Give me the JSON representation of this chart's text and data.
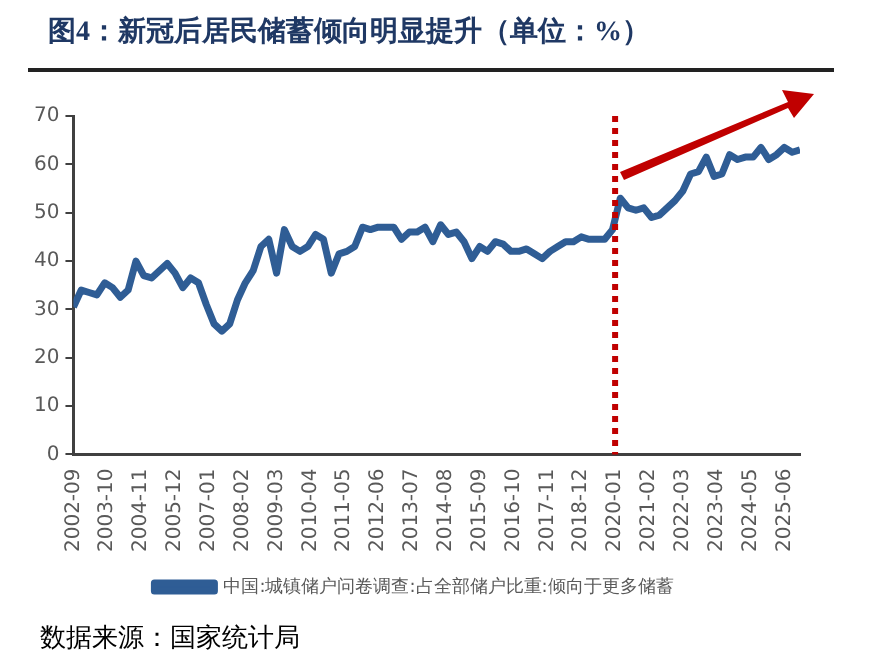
{
  "chart_data": {
    "type": "line",
    "title": "图4：新冠后居民储蓄倾向明显提升（单位：%）",
    "annotations": [
      "数据来源：国家统计局"
    ],
    "x": [
      "2002-09",
      "2002-12",
      "2003-03",
      "2003-06",
      "2003-09",
      "2003-12",
      "2004-03",
      "2004-06",
      "2004-09",
      "2004-12",
      "2005-03",
      "2005-06",
      "2005-09",
      "2005-12",
      "2006-03",
      "2006-06",
      "2006-09",
      "2006-12",
      "2007-03",
      "2007-06",
      "2007-09",
      "2007-12",
      "2008-03",
      "2008-06",
      "2008-09",
      "2008-12",
      "2009-03",
      "2009-06",
      "2009-09",
      "2009-12",
      "2010-03",
      "2010-06",
      "2010-09",
      "2010-12",
      "2011-03",
      "2011-06",
      "2011-09",
      "2011-12",
      "2012-03",
      "2012-06",
      "2012-09",
      "2012-12",
      "2013-03",
      "2013-06",
      "2013-09",
      "2013-12",
      "2014-03",
      "2014-06",
      "2014-09",
      "2014-12",
      "2015-03",
      "2015-06",
      "2015-09",
      "2015-12",
      "2016-03",
      "2016-06",
      "2016-09",
      "2016-12",
      "2017-03",
      "2017-06",
      "2017-09",
      "2017-12",
      "2018-03",
      "2018-06",
      "2018-09",
      "2018-12",
      "2019-03",
      "2019-06",
      "2019-09",
      "2019-12",
      "2020-03",
      "2020-06",
      "2020-09",
      "2020-12",
      "2021-03",
      "2021-06",
      "2021-09",
      "2021-12",
      "2022-03",
      "2022-06",
      "2022-09",
      "2022-12",
      "2023-03",
      "2023-06",
      "2023-09",
      "2023-12",
      "2024-03",
      "2024-06",
      "2024-09",
      "2024-12",
      "2025-03",
      "2025-06",
      "2025-09",
      "2025-12"
    ],
    "series": [
      {
        "name": "中国:城镇储户问卷调查:占全部储户比重:倾向于更多储蓄",
        "color": "#2f5d95",
        "values": [
          30.5,
          34,
          33.5,
          33,
          35.5,
          34.5,
          32.5,
          34,
          40,
          37,
          36.5,
          38,
          39.5,
          37.5,
          34.5,
          36.5,
          35.5,
          31,
          27,
          25.5,
          27,
          32,
          35.5,
          38,
          43,
          44.5,
          37.5,
          46.5,
          43,
          42,
          43,
          45.5,
          44.5,
          37.5,
          41.5,
          42,
          43,
          47,
          46.5,
          47,
          47,
          47,
          44.5,
          46,
          46,
          47,
          44,
          47.5,
          45.5,
          46,
          44,
          40.5,
          43,
          42,
          44,
          43.5,
          42,
          42,
          42.5,
          41.5,
          40.5,
          42,
          43,
          44,
          44,
          45,
          44.5,
          44.5,
          44.5,
          46.5,
          53,
          51,
          50.5,
          51,
          49,
          49.5,
          51,
          52.5,
          54.5,
          58,
          58.5,
          61.5,
          57.5,
          58,
          62,
          61,
          61.5,
          61.5,
          63.5,
          61,
          62,
          63.5,
          62.5,
          63
        ]
      }
    ],
    "xlim": [
      "2002-09",
      "2025-12"
    ],
    "xticks": [
      "2002-09",
      "2003-10",
      "2004-11",
      "2005-12",
      "2007-01",
      "2008-02",
      "2009-03",
      "2010-04",
      "2011-05",
      "2012-06",
      "2013-07",
      "2014-08",
      "2015-09",
      "2016-10",
      "2017-11",
      "2018-12",
      "2020-01",
      "2021-02",
      "2022-03",
      "2023-04",
      "2024-05",
      "2025-06"
    ],
    "ylim": [
      0,
      70
    ],
    "yticks": [
      0,
      10,
      20,
      30,
      40,
      50,
      60,
      70
    ],
    "ref_lines": [
      {
        "axis": "x",
        "value": "2020-01",
        "color": "#c00000",
        "line_style": "dotted"
      }
    ],
    "legend": "bottom",
    "marker": "none",
    "line_style": "solid",
    "grid": false
  }
}
